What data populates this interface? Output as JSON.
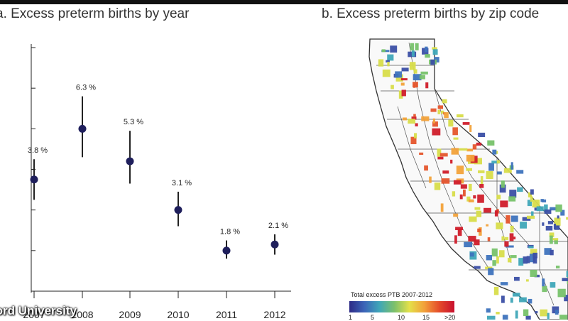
{
  "panel_a": {
    "title": "a. Excess preterm births by year"
  },
  "panel_b": {
    "title": "b. Excess preterm births by zip code"
  },
  "legend": {
    "title": "Total excess PTB 2007-2012",
    "ticks": [
      "1",
      "5",
      "10",
      "15",
      ">20"
    ]
  },
  "credit": "ford University",
  "chart_data": {
    "type": "scatter",
    "title": "a. Excess preterm births by year",
    "xlabel": "",
    "ylabel": "",
    "x": [
      "2007",
      "2008",
      "2009",
      "2010",
      "2011",
      "2012"
    ],
    "series": [
      {
        "values": [
          3.8,
          6.3,
          5.3,
          3.1,
          1.8,
          2.1
        ],
        "labels": [
          "3.8 %",
          "6.3 %",
          "5.3 %",
          "3.1 %",
          "1.8 %",
          "2.1 %"
        ],
        "point": [
          3.5,
          6.0,
          4.4,
          2.0,
          0.0,
          0.3
        ],
        "err_low": [
          2.5,
          4.6,
          3.3,
          1.2,
          -0.4,
          -0.2
        ],
        "err_high": [
          4.5,
          7.6,
          5.9,
          2.9,
          0.5,
          0.8
        ]
      }
    ],
    "ylim": [
      -2,
      10
    ],
    "grid": false,
    "colors": {
      "point": "#1f1f5c",
      "errorbar": "#222222"
    }
  },
  "colors": {
    "map_outline": "#333333",
    "legend_low": "#2d2a86",
    "legend_high": "#c8102e"
  }
}
